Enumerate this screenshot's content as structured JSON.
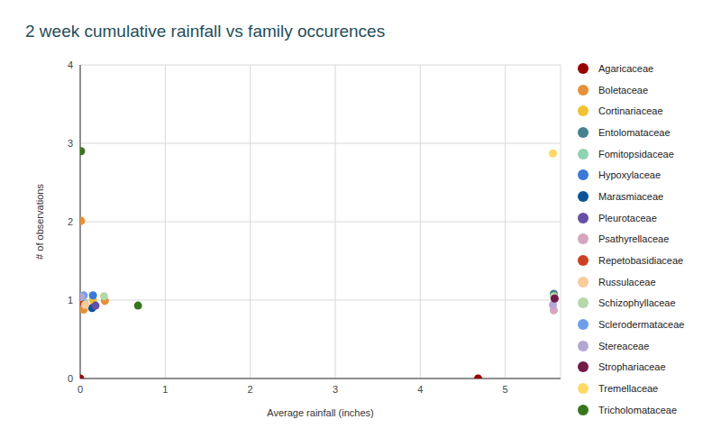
{
  "chart_data": {
    "type": "scatter",
    "title": "2 week cumulative rainfall vs family occurences",
    "x_label": "Average rainfall (inches)",
    "y_label": "# of observations",
    "xlim": [
      0,
      5.65
    ],
    "xticks": [
      0,
      1,
      2,
      3,
      4,
      5
    ],
    "ylim": [
      0,
      4
    ],
    "yticks": [
      0,
      1,
      2,
      3,
      4
    ],
    "grid": true,
    "legend": "right",
    "marker": "circle",
    "series": [
      {
        "name": "Agaricaceae",
        "color": "#990000",
        "x": [
          0,
          4.68
        ],
        "values": [
          0,
          0
        ]
      },
      {
        "name": "Boletaceae",
        "color": "#e69138",
        "x": [
          0.01,
          0.04,
          0.29
        ],
        "values": [
          2.01,
          0.88,
          0.99
        ]
      },
      {
        "name": "Cortinariaceae",
        "color": "#f1c232",
        "x": [
          0.15
        ],
        "values": [
          1.0
        ]
      },
      {
        "name": "Entolomataceae",
        "color": "#45818e",
        "x": [
          5.57
        ],
        "values": [
          1.08
        ]
      },
      {
        "name": "Fomitopsidaceae",
        "color": "#8fd3b0",
        "x": [
          0.05
        ],
        "values": [
          0.97
        ]
      },
      {
        "name": "Hypoxylaceae",
        "color": "#3c78d8",
        "x": [
          0.15
        ],
        "values": [
          1.06
        ]
      },
      {
        "name": "Marasmiaceae",
        "color": "#0b5394",
        "x": [
          0.14
        ],
        "values": [
          0.9
        ]
      },
      {
        "name": "Pleurotaceae",
        "color": "#674ea7",
        "x": [
          0.18
        ],
        "values": [
          0.93
        ]
      },
      {
        "name": "Psathyrellaceae",
        "color": "#d5a6bd",
        "x": [
          5.57
        ],
        "values": [
          0.87
        ]
      },
      {
        "name": "Repetobasidiaceae",
        "color": "#cc4125",
        "x": [
          0.0
        ],
        "values": [
          0.98
        ]
      },
      {
        "name": "Russulaceae",
        "color": "#f9cb9c",
        "x": [
          0.06
        ],
        "values": [
          0.94
        ]
      },
      {
        "name": "Schizophyllaceae",
        "color": "#b6d7a8",
        "x": [
          0.28,
          5.57
        ],
        "values": [
          1.05,
          1.05
        ]
      },
      {
        "name": "Sclerodermataceae",
        "color": "#6d9eeb",
        "x": [
          0.04
        ],
        "values": [
          1.06
        ]
      },
      {
        "name": "Stereaceae",
        "color": "#b4a7d6",
        "x": [
          0.01,
          5.56
        ],
        "values": [
          1.04,
          0.94
        ]
      },
      {
        "name": "Strophariaceae",
        "color": "#741b47",
        "x": [
          5.58
        ],
        "values": [
          1.02
        ]
      },
      {
        "name": "Tremellaceae",
        "color": "#ffd966",
        "x": [
          5.56
        ],
        "values": [
          2.87
        ]
      },
      {
        "name": "Tricholomataceae",
        "color": "#38761d",
        "x": [
          0.01,
          0.68
        ],
        "values": [
          2.9,
          0.93
        ]
      }
    ]
  }
}
